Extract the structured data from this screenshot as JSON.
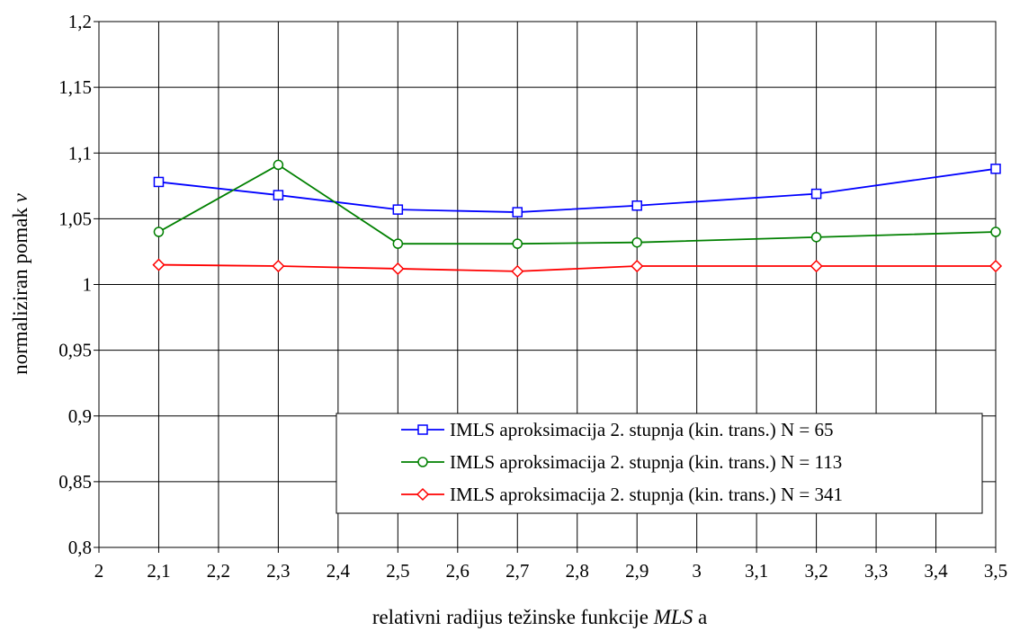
{
  "chart_data": {
    "type": "line",
    "title": "",
    "xlabel": "relativni radijus težinske funkcije MLS a",
    "xlabel_parts": {
      "pre": "relativni radijus težinske funkcije ",
      "italic": "MLS",
      "post": " a"
    },
    "ylabel": "normaliziran pomak v",
    "ylabel_parts": {
      "pre": "normaliziran pomak ",
      "italic": "v"
    },
    "xlim": [
      2,
      3.5
    ],
    "ylim": [
      0.8,
      1.2
    ],
    "x_ticks": [
      2,
      2.1,
      2.2,
      2.3,
      2.4,
      2.5,
      2.6,
      2.7,
      2.8,
      2.9,
      3,
      3.1,
      3.2,
      3.3,
      3.4,
      3.5
    ],
    "x_tick_labels": [
      "2",
      "2,1",
      "2,2",
      "2,3",
      "2,4",
      "2,5",
      "2,6",
      "2,7",
      "2,8",
      "2,9",
      "3",
      "3,1",
      "3,2",
      "3,3",
      "3,4",
      "3,5"
    ],
    "y_ticks": [
      0.8,
      0.85,
      0.9,
      0.95,
      1.0,
      1.05,
      1.1,
      1.15,
      1.2
    ],
    "y_tick_labels": [
      "0,8",
      "0,85",
      "0,9",
      "0,95",
      "1",
      "1,05",
      "1,1",
      "1,15",
      "1,2"
    ],
    "grid": true,
    "legend_position": "bottom-right",
    "series": [
      {
        "name": "IMLS aproksimacija 2. stupnja (kin. trans.) N = 65",
        "color": "#0000ff",
        "marker": "square",
        "x": [
          2.1,
          2.3,
          2.5,
          2.7,
          2.9,
          3.2,
          3.5
        ],
        "y": [
          1.078,
          1.068,
          1.057,
          1.055,
          1.06,
          1.069,
          1.088
        ]
      },
      {
        "name": "IMLS aproksimacija 2. stupnja (kin. trans.) N = 113",
        "color": "#008000",
        "marker": "circle",
        "x": [
          2.1,
          2.3,
          2.5,
          2.7,
          2.9,
          3.2,
          3.5
        ],
        "y": [
          1.04,
          1.091,
          1.031,
          1.031,
          1.032,
          1.036,
          1.04
        ]
      },
      {
        "name": "IMLS aproksimacija 2. stupnja (kin. trans.) N = 341",
        "color": "#ff0000",
        "marker": "diamond",
        "x": [
          2.1,
          2.3,
          2.5,
          2.7,
          2.9,
          3.2,
          3.5
        ],
        "y": [
          1.015,
          1.014,
          1.012,
          1.01,
          1.014,
          1.014,
          1.014
        ]
      }
    ]
  }
}
